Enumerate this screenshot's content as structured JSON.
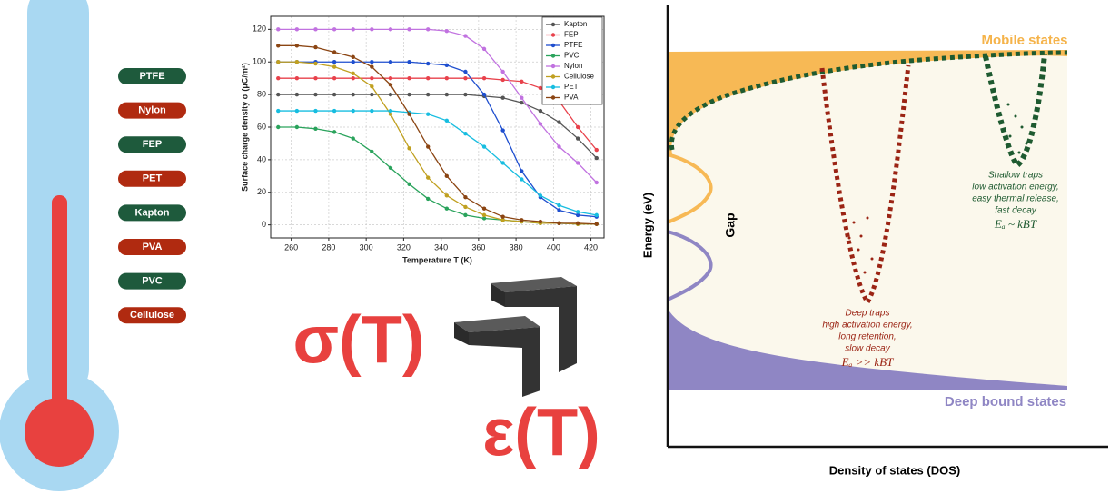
{
  "chart_data": {
    "type": "line",
    "x": [
      253,
      263,
      273,
      283,
      293,
      303,
      313,
      323,
      333,
      343,
      353,
      363,
      373,
      383,
      393,
      403,
      413,
      423
    ],
    "series": [
      {
        "name": "Kapton",
        "color": "#555555",
        "values": [
          80,
          80,
          80,
          80,
          80,
          80,
          80,
          80,
          80,
          80,
          80,
          79,
          78,
          75,
          70,
          63,
          53,
          41
        ]
      },
      {
        "name": "FEP",
        "color": "#e8414b",
        "values": [
          90,
          90,
          90,
          90,
          90,
          90,
          90,
          90,
          90,
          90,
          90,
          90,
          89,
          88,
          84,
          76,
          60,
          46
        ]
      },
      {
        "name": "PTFE",
        "color": "#1f4fcf",
        "values": [
          100,
          100,
          100,
          100,
          100,
          100,
          100,
          100,
          99,
          98,
          94,
          80,
          58,
          33,
          17,
          9,
          6,
          5
        ]
      },
      {
        "name": "PVC",
        "color": "#2aa35c",
        "values": [
          60,
          60,
          59,
          57,
          53,
          45,
          35,
          25,
          16,
          10,
          6,
          4,
          3,
          2,
          1,
          1,
          0.5,
          0.5
        ]
      },
      {
        "name": "Nylon",
        "color": "#c172e0",
        "values": [
          120,
          120,
          120,
          120,
          120,
          120,
          120,
          120,
          120,
          119,
          116,
          108,
          94,
          78,
          62,
          48,
          38,
          26
        ]
      },
      {
        "name": "Cellulose",
        "color": "#c0a020",
        "values": [
          100,
          100,
          99,
          97,
          93,
          85,
          68,
          47,
          29,
          18,
          11,
          6,
          3,
          2,
          1,
          1,
          0.5,
          0.5
        ]
      },
      {
        "name": "PET",
        "color": "#17bde0",
        "values": [
          70,
          70,
          70,
          70,
          70,
          70,
          70,
          69,
          68,
          64,
          56,
          48,
          38,
          28,
          18,
          12,
          8,
          6
        ]
      },
      {
        "name": "PVA",
        "color": "#8b4513",
        "values": [
          110,
          110,
          109,
          106,
          103,
          97,
          86,
          68,
          48,
          30,
          17,
          10,
          5,
          3,
          2,
          1,
          1,
          0.5
        ]
      }
    ],
    "xlim": [
      249,
      427
    ],
    "ylim": [
      -8,
      128
    ],
    "xticks": [
      260,
      280,
      300,
      320,
      340,
      360,
      380,
      400,
      420
    ],
    "yticks": [
      0,
      20,
      40,
      60,
      80,
      100,
      120
    ],
    "x_label": "Temperature T (K)",
    "y_label": "Surface charge density σ (μC/m²)",
    "grid": true,
    "legend": "upper right"
  },
  "thermometer": {
    "labels": [
      "PTFE",
      "Nylon",
      "FEP",
      "PET",
      "Kapton",
      "PVA",
      "PVC",
      "Cellulose"
    ]
  },
  "formulas": [
    "σ(T)",
    "ε(T)"
  ],
  "dos_diagram": {
    "y_label": "Energy (eV)",
    "x_label": "Density of states (DOS)",
    "mobile": "Mobile states",
    "gap": "Gap",
    "bound": "Deep bound states",
    "deep_traps": [
      "Deep traps",
      "high activation energy,",
      "long retention,",
      "slow decay",
      "Eₐ >> kBT"
    ],
    "shallow_traps": [
      "Shallow traps",
      "low activation energy,",
      "easy thermal release,",
      "fast decay",
      "Eₐ ~ kBT"
    ]
  }
}
